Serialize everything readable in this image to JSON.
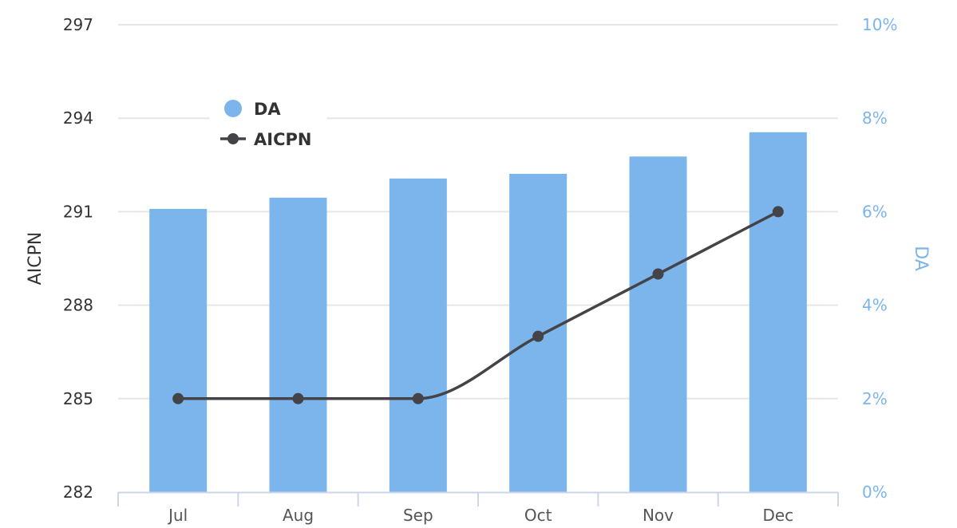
{
  "chart_data": {
    "type": "bar+line",
    "title": "",
    "categories": [
      "Jul",
      "Aug",
      "Sep",
      "Oct",
      "Nov",
      "Dec"
    ],
    "series": [
      {
        "name": "DA",
        "type": "bar",
        "axis": "right",
        "unit": "%",
        "color": "#7cb5ec",
        "values": [
          6.06,
          6.3,
          6.71,
          6.81,
          7.18,
          7.7
        ]
      },
      {
        "name": "AICPN",
        "type": "line",
        "axis": "left",
        "smoothing": "monotone",
        "color": "#434348",
        "values": [
          285,
          285,
          285,
          287,
          289,
          291
        ]
      }
    ],
    "xlabel": "",
    "ylabel_left": "AICPN",
    "ylabel_right": "DA",
    "ylim_left": [
      282,
      297
    ],
    "yticks_left": [
      "282",
      "285",
      "288",
      "291",
      "294",
      "297"
    ],
    "ylim_right": [
      0,
      10
    ],
    "yticks_right": [
      "0%",
      "2%",
      "4%",
      "6%",
      "8%",
      "10%"
    ],
    "grid": true,
    "legend": {
      "position": "top-left-inside",
      "entries": [
        "DA",
        "AICPN"
      ]
    }
  },
  "colors": {
    "bar": "#7cb5ec",
    "line": "#434348",
    "grid": "#e6e6e6",
    "axis_line": "#ccd6eb",
    "left_text": "#333333",
    "right_text": "#7cb5ec",
    "x_text": "#555555"
  }
}
